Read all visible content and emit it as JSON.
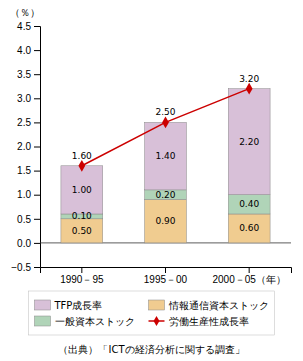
{
  "chart_data": {
    "type": "bar",
    "stacked": true,
    "ylabel": "（％）",
    "categories": [
      "1990－95",
      "1995－00",
      "2000－05（年）"
    ],
    "series": [
      {
        "name": "TFP成長率",
        "type": "bar",
        "color": "#d8c0d8",
        "values": [
          1.0,
          1.4,
          2.2
        ],
        "value_labels": [
          "1.00",
          "1.40",
          "2.20"
        ]
      },
      {
        "name": "一般資本ストック",
        "type": "bar",
        "color": "#b0d4b8",
        "values": [
          0.1,
          0.2,
          0.4
        ],
        "value_labels": [
          "0.10",
          "0.20",
          "0.40"
        ]
      },
      {
        "name": "情報通信資本ストック",
        "type": "bar",
        "color": "#f0cc90",
        "values": [
          0.5,
          0.9,
          0.6
        ],
        "value_labels": [
          "0.50",
          "0.90",
          "0.60"
        ]
      },
      {
        "name": "労働生産性成長率",
        "type": "line",
        "color": "#cc0000",
        "marker": "diamond",
        "values": [
          1.6,
          2.5,
          3.2
        ],
        "value_labels": [
          "1.60",
          "2.50",
          "3.20"
        ]
      }
    ],
    "ylim": [
      -0.5,
      4.5
    ],
    "yticks": [
      {
        "value": -0.5,
        "label": "−0.5"
      },
      {
        "value": 0.0,
        "label": "0.0"
      },
      0.5,
      {
        "value": 1.0,
        "label": "1.0"
      },
      1.5,
      {
        "value": 2.0,
        "label": "2.0"
      },
      2.5,
      {
        "value": 3.0,
        "label": "3.0"
      },
      3.5,
      {
        "value": 4.0,
        "label": "4.0"
      },
      4.5
    ],
    "data_labels": true,
    "grid": false,
    "legend": "bottom",
    "annotations": [
      "（出典）「ICTの経済分析に関する調査」"
    ]
  }
}
